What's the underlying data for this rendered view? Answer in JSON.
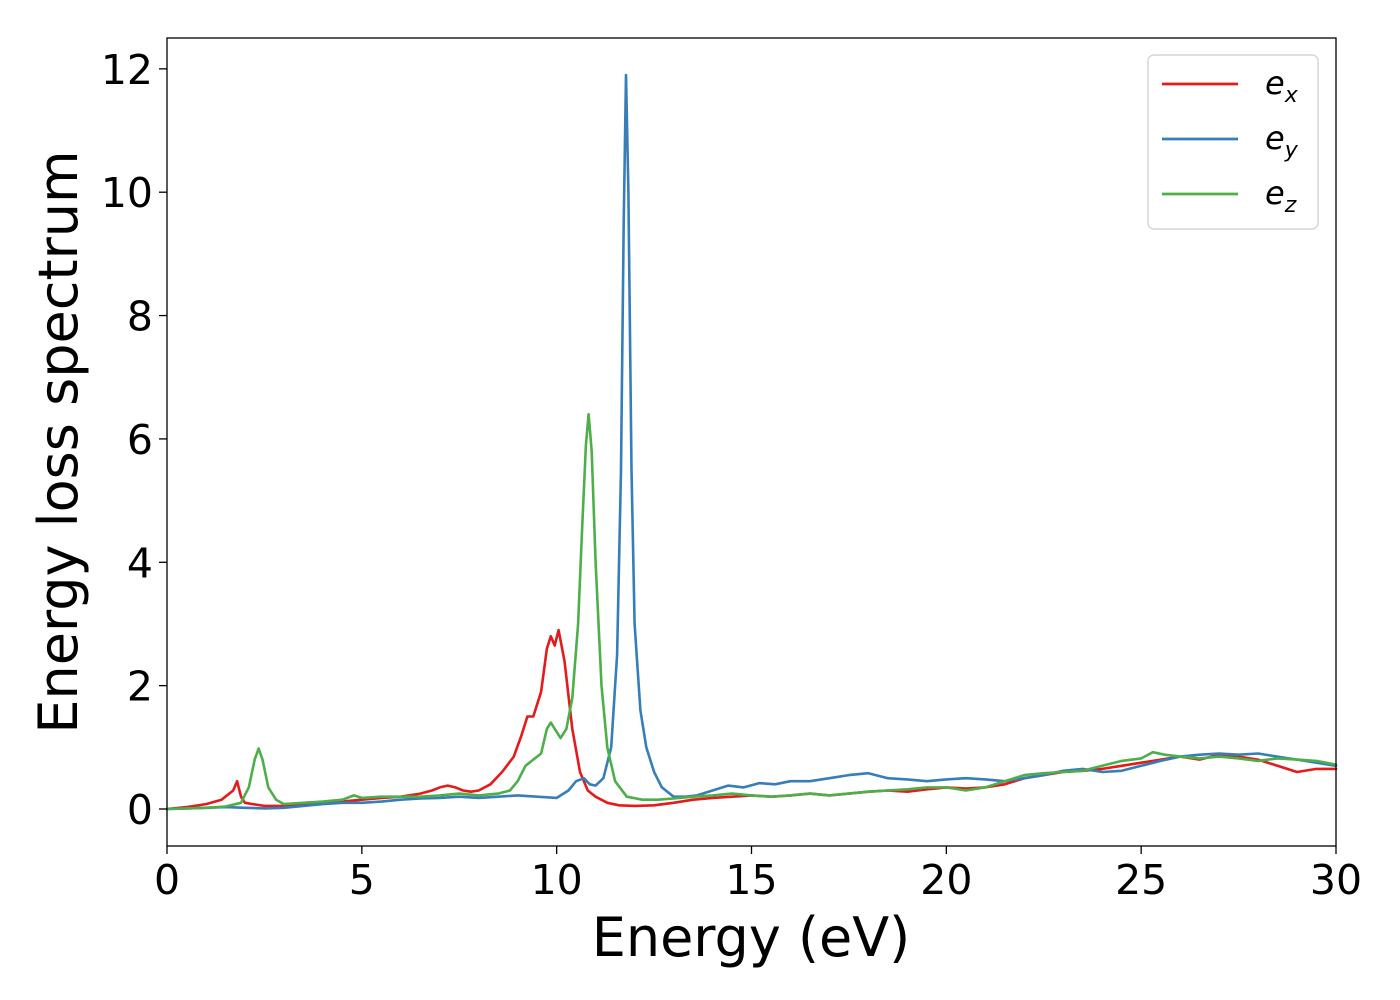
{
  "chart_data": {
    "type": "line",
    "xlabel": "Energy (eV)",
    "ylabel": "Energy loss spectrum",
    "xlim": [
      0,
      30
    ],
    "ylim": [
      -0.6,
      12.5
    ],
    "xticks": [
      0,
      5,
      10,
      15,
      20,
      25,
      30
    ],
    "xtick_labels": [
      "0",
      "5",
      "10",
      "15",
      "20",
      "25",
      "30"
    ],
    "yticks": [
      0,
      2,
      4,
      6,
      8,
      10,
      12
    ],
    "ytick_labels": [
      "0",
      "2",
      "4",
      "6",
      "8",
      "10",
      "12"
    ],
    "grid": false,
    "legend_position": "top-right",
    "series": [
      {
        "name": "e_x",
        "label_base": "e",
        "label_sub": "x",
        "color": "#e41a1c",
        "x": [
          0,
          0.5,
          1.0,
          1.4,
          1.7,
          1.8,
          1.9,
          2.0,
          2.2,
          2.5,
          3.0,
          3.5,
          4.0,
          4.5,
          5.0,
          5.5,
          6.0,
          6.5,
          6.8,
          7.0,
          7.2,
          7.4,
          7.6,
          7.8,
          8.0,
          8.3,
          8.6,
          8.9,
          9.1,
          9.25,
          9.4,
          9.6,
          9.75,
          9.85,
          9.95,
          10.05,
          10.2,
          10.4,
          10.6,
          10.8,
          11.0,
          11.3,
          11.6,
          12.0,
          12.5,
          13.0,
          13.5,
          14.0,
          14.5,
          15.0,
          15.5,
          16.0,
          16.5,
          17.0,
          17.5,
          18.0,
          18.5,
          19.0,
          19.5,
          20.0,
          20.5,
          21.0,
          21.5,
          22.0,
          22.5,
          23.0,
          23.5,
          24.0,
          24.5,
          25.0,
          25.5,
          26.0,
          26.5,
          27.0,
          27.5,
          28.0,
          28.5,
          29.0,
          29.5,
          30.0
        ],
        "y": [
          0,
          0.03,
          0.08,
          0.15,
          0.3,
          0.45,
          0.2,
          0.1,
          0.08,
          0.05,
          0.05,
          0.08,
          0.1,
          0.12,
          0.15,
          0.18,
          0.2,
          0.25,
          0.3,
          0.35,
          0.38,
          0.35,
          0.3,
          0.28,
          0.3,
          0.4,
          0.6,
          0.85,
          1.2,
          1.5,
          1.5,
          1.9,
          2.6,
          2.8,
          2.65,
          2.9,
          2.4,
          1.3,
          0.6,
          0.3,
          0.2,
          0.1,
          0.06,
          0.05,
          0.06,
          0.1,
          0.15,
          0.18,
          0.2,
          0.22,
          0.2,
          0.22,
          0.25,
          0.22,
          0.25,
          0.28,
          0.3,
          0.28,
          0.32,
          0.35,
          0.33,
          0.35,
          0.4,
          0.5,
          0.55,
          0.6,
          0.62,
          0.65,
          0.7,
          0.75,
          0.8,
          0.85,
          0.8,
          0.88,
          0.85,
          0.8,
          0.7,
          0.6,
          0.65,
          0.65
        ]
      },
      {
        "name": "e_y",
        "label_base": "e",
        "label_sub": "y",
        "color": "#377eb8",
        "x": [
          0,
          0.5,
          1.0,
          1.5,
          2.0,
          2.5,
          3.0,
          3.5,
          4.0,
          4.5,
          5.0,
          5.5,
          6.0,
          6.5,
          7.0,
          7.5,
          8.0,
          8.5,
          9.0,
          9.5,
          10.0,
          10.3,
          10.5,
          10.7,
          10.85,
          11.0,
          11.2,
          11.4,
          11.55,
          11.65,
          11.72,
          11.78,
          11.84,
          11.92,
          12.0,
          12.15,
          12.3,
          12.5,
          12.7,
          13.0,
          13.3,
          13.6,
          14.0,
          14.4,
          14.8,
          15.2,
          15.6,
          16.0,
          16.5,
          17.0,
          17.5,
          18.0,
          18.5,
          19.0,
          19.5,
          20.0,
          20.5,
          21.0,
          21.5,
          22.0,
          22.5,
          23.0,
          23.5,
          24.0,
          24.5,
          25.0,
          25.5,
          26.0,
          26.5,
          27.0,
          27.5,
          28.0,
          28.5,
          29.0,
          29.5,
          30.0
        ],
        "y": [
          0,
          0.01,
          0.02,
          0.03,
          0.02,
          0.01,
          0.02,
          0.05,
          0.08,
          0.1,
          0.1,
          0.12,
          0.15,
          0.17,
          0.18,
          0.2,
          0.18,
          0.2,
          0.22,
          0.2,
          0.18,
          0.3,
          0.45,
          0.5,
          0.4,
          0.38,
          0.5,
          1.0,
          2.5,
          5.5,
          9.5,
          11.9,
          10.0,
          5.5,
          3.0,
          1.6,
          1.0,
          0.6,
          0.35,
          0.2,
          0.2,
          0.22,
          0.3,
          0.38,
          0.35,
          0.42,
          0.4,
          0.45,
          0.45,
          0.5,
          0.55,
          0.58,
          0.5,
          0.48,
          0.45,
          0.48,
          0.5,
          0.48,
          0.45,
          0.5,
          0.55,
          0.62,
          0.65,
          0.6,
          0.62,
          0.7,
          0.78,
          0.85,
          0.88,
          0.9,
          0.88,
          0.9,
          0.85,
          0.8,
          0.75,
          0.7
        ]
      },
      {
        "name": "e_z",
        "label_base": "e",
        "label_sub": "z",
        "color": "#4daf4a",
        "x": [
          0,
          0.5,
          1.0,
          1.5,
          1.9,
          2.1,
          2.25,
          2.35,
          2.45,
          2.6,
          2.8,
          3.0,
          3.5,
          4.0,
          4.5,
          4.8,
          5.0,
          5.5,
          6.0,
          6.5,
          7.0,
          7.5,
          8.0,
          8.5,
          8.8,
          9.0,
          9.2,
          9.4,
          9.6,
          9.75,
          9.85,
          9.95,
          10.1,
          10.25,
          10.4,
          10.55,
          10.65,
          10.75,
          10.82,
          10.9,
          11.0,
          11.15,
          11.3,
          11.5,
          11.8,
          12.2,
          12.6,
          13.0,
          13.5,
          14.0,
          14.5,
          15.0,
          15.5,
          16.0,
          16.5,
          17.0,
          17.5,
          18.0,
          18.5,
          19.0,
          19.5,
          20.0,
          20.5,
          21.0,
          21.5,
          22.0,
          22.5,
          23.0,
          23.5,
          24.0,
          24.5,
          25.0,
          25.3,
          25.6,
          26.0,
          26.5,
          27.0,
          27.5,
          28.0,
          28.5,
          29.0,
          29.5,
          30.0
        ],
        "y": [
          0,
          0.01,
          0.02,
          0.04,
          0.1,
          0.35,
          0.8,
          0.98,
          0.8,
          0.35,
          0.15,
          0.08,
          0.1,
          0.12,
          0.15,
          0.22,
          0.18,
          0.2,
          0.2,
          0.2,
          0.22,
          0.25,
          0.22,
          0.25,
          0.3,
          0.45,
          0.7,
          0.8,
          0.9,
          1.3,
          1.4,
          1.3,
          1.15,
          1.3,
          1.8,
          3.0,
          4.5,
          5.9,
          6.4,
          5.8,
          4.0,
          2.0,
          1.0,
          0.45,
          0.2,
          0.15,
          0.15,
          0.17,
          0.2,
          0.22,
          0.25,
          0.22,
          0.2,
          0.22,
          0.25,
          0.22,
          0.25,
          0.28,
          0.3,
          0.32,
          0.35,
          0.35,
          0.3,
          0.35,
          0.45,
          0.55,
          0.58,
          0.6,
          0.62,
          0.7,
          0.78,
          0.82,
          0.92,
          0.88,
          0.85,
          0.82,
          0.85,
          0.82,
          0.78,
          0.82,
          0.8,
          0.78,
          0.72
        ]
      }
    ]
  }
}
